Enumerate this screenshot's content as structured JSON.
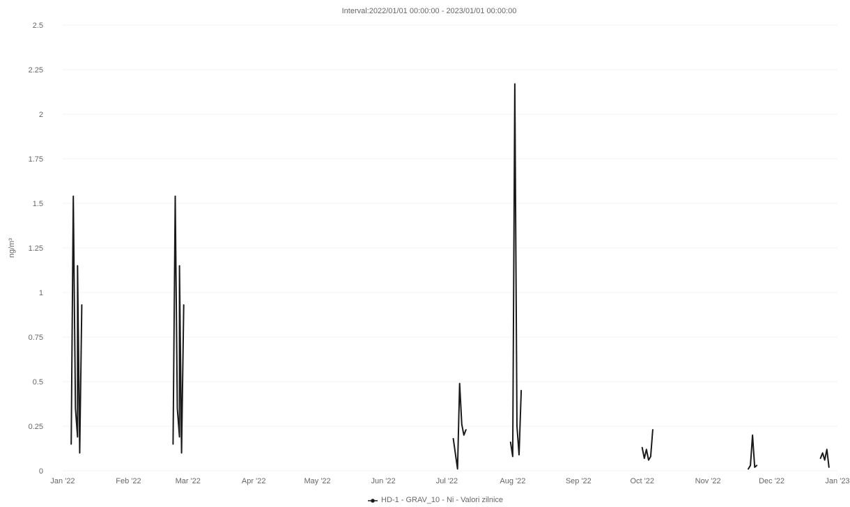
{
  "chart_data": {
    "type": "line",
    "title": "Interval:2022/01/01 00:00:00 - 2023/01/01 00:00:00",
    "ylabel": "ng/m³",
    "xlabel": "",
    "ylim": [
      0,
      2.5
    ],
    "xlim": [
      "2022-01-01",
      "2023-01-01"
    ],
    "y_ticks": [
      "0",
      "0.25",
      "0.5",
      "0.75",
      "1",
      "1.25",
      "1.5",
      "1.75",
      "2",
      "2.25",
      "2.5"
    ],
    "x_ticks": [
      {
        "label": "Jan '22",
        "date": "2022-01-01"
      },
      {
        "label": "Feb '22",
        "date": "2022-02-01"
      },
      {
        "label": "Mar '22",
        "date": "2022-03-01"
      },
      {
        "label": "Apr '22",
        "date": "2022-04-01"
      },
      {
        "label": "May '22",
        "date": "2022-05-01"
      },
      {
        "label": "Jun '22",
        "date": "2022-06-01"
      },
      {
        "label": "Jul '22",
        "date": "2022-07-01"
      },
      {
        "label": "Aug '22",
        "date": "2022-08-01"
      },
      {
        "label": "Sep '22",
        "date": "2022-09-01"
      },
      {
        "label": "Oct '22",
        "date": "2022-10-01"
      },
      {
        "label": "Nov '22",
        "date": "2022-11-01"
      },
      {
        "label": "Dec '22",
        "date": "2022-12-01"
      },
      {
        "label": "Jan '23",
        "date": "2023-01-01"
      }
    ],
    "grid": true,
    "legend_position": "bottom-center",
    "series": [
      {
        "name": "HD-1 - GRAV_10 - Ni - Valori zilnice",
        "color": "#1a1a1a",
        "segments": [
          [
            [
              "2022-01-05",
              0.15
            ],
            [
              "2022-01-06",
              1.54
            ],
            [
              "2022-01-07",
              0.35
            ],
            [
              "2022-01-08",
              0.19
            ],
            [
              "2022-01-08",
              1.15
            ],
            [
              "2022-01-09",
              0.1
            ],
            [
              "2022-01-10",
              0.93
            ]
          ],
          [
            [
              "2022-02-22",
              0.15
            ],
            [
              "2022-02-23",
              1.54
            ],
            [
              "2022-02-24",
              0.35
            ],
            [
              "2022-02-25",
              0.19
            ],
            [
              "2022-02-25",
              1.15
            ],
            [
              "2022-02-26",
              0.1
            ],
            [
              "2022-02-27",
              0.93
            ]
          ],
          [
            [
              "2022-07-04",
              0.18
            ],
            [
              "2022-07-06",
              0.01
            ],
            [
              "2022-07-07",
              0.49
            ],
            [
              "2022-07-08",
              0.26
            ],
            [
              "2022-07-09",
              0.2
            ],
            [
              "2022-07-10",
              0.23
            ]
          ],
          [
            [
              "2022-07-31",
              0.16
            ],
            [
              "2022-08-01",
              0.08
            ],
            [
              "2022-08-02",
              2.17
            ],
            [
              "2022-08-03",
              0.25
            ],
            [
              "2022-08-04",
              0.09
            ],
            [
              "2022-08-05",
              0.45
            ]
          ],
          [
            [
              "2022-10-01",
              0.13
            ],
            [
              "2022-10-02",
              0.07
            ],
            [
              "2022-10-03",
              0.12
            ],
            [
              "2022-10-04",
              0.06
            ],
            [
              "2022-10-05",
              0.08
            ],
            [
              "2022-10-06",
              0.23
            ]
          ],
          [
            [
              "2022-11-20",
              0.01
            ],
            [
              "2022-11-21",
              0.03
            ],
            [
              "2022-11-22",
              0.2
            ],
            [
              "2022-11-23",
              0.02
            ],
            [
              "2022-11-24",
              0.03
            ]
          ],
          [
            [
              "2022-12-24",
              0.07
            ],
            [
              "2022-12-25",
              0.1
            ],
            [
              "2022-12-26",
              0.06
            ],
            [
              "2022-12-27",
              0.12
            ],
            [
              "2022-12-28",
              0.02
            ]
          ]
        ]
      }
    ]
  }
}
